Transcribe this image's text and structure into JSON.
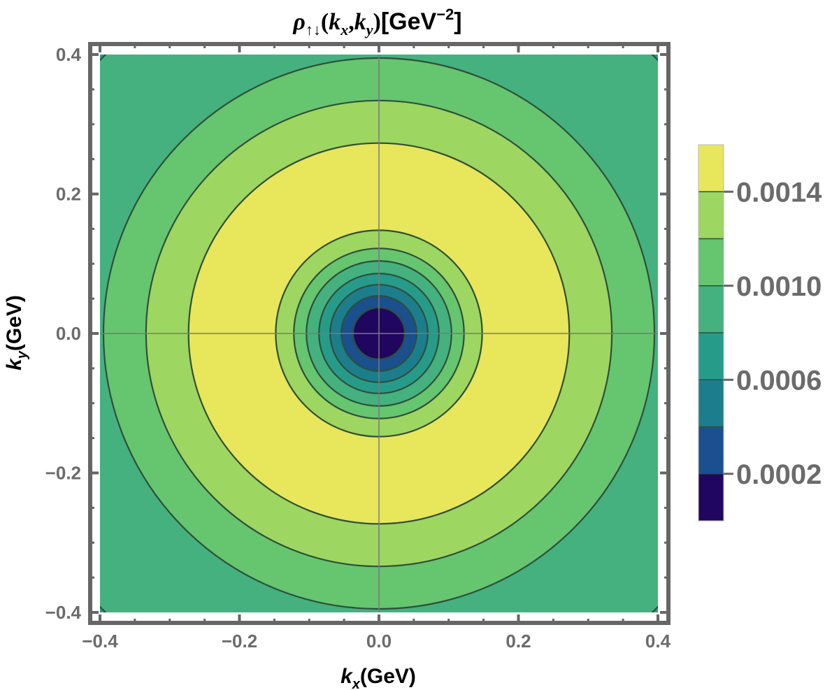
{
  "chart_data": {
    "type": "heatmap",
    "subtype": "contour",
    "title": {
      "symbol": "ρ",
      "subscript": "↑↓",
      "args_open": "(",
      "kx_letter": "k",
      "kx_sub": "x",
      "comma": ",",
      "ky_letter": "k",
      "ky_sub": "y",
      "args_close": ")",
      "unit_open": "[GeV",
      "unit_exp": "−2",
      "unit_close": "]"
    },
    "xlabel": {
      "var": "k",
      "sub": "x",
      "unit": "(GeV)"
    },
    "ylabel": {
      "var": "k",
      "sub": "y",
      "unit": "(GeV)"
    },
    "xlim": [
      -0.4,
      0.4
    ],
    "ylim": [
      -0.4,
      0.4
    ],
    "x_ticks": [
      -0.4,
      -0.2,
      0.0,
      0.2,
      0.4
    ],
    "x_tick_labels": [
      "−0.4",
      "−0.2",
      "0.0",
      "0.2",
      "0.4"
    ],
    "y_ticks": [
      -0.4,
      -0.2,
      0.0,
      0.2,
      0.4
    ],
    "y_tick_labels": [
      "−0.4",
      "−0.2",
      "0.0",
      "0.2",
      "0.4"
    ],
    "grid": "axes lines through origin",
    "contour_levels": [
      0.0002,
      0.0004,
      0.0006,
      0.0008,
      0.001,
      0.0012,
      0.0014
    ],
    "inner_contour_radii": [
      0.037,
      0.054,
      0.07,
      0.086,
      0.104,
      0.122,
      0.148
    ],
    "outer_contour_radii": [
      0.273,
      0.334,
      0.395,
      0.56
    ],
    "band_colors": [
      "#20065e",
      "#19508d",
      "#1c7e8c",
      "#279b8a",
      "#44b17f",
      "#66c56f",
      "#9dd660",
      "#e8e65a"
    ],
    "legend": {
      "placement": "right",
      "tick_values": [
        0.0002,
        0.0006,
        0.001,
        0.0014
      ],
      "tick_labels": [
        "0.0002",
        "0.0006",
        "0.0010",
        "0.0014"
      ]
    }
  }
}
